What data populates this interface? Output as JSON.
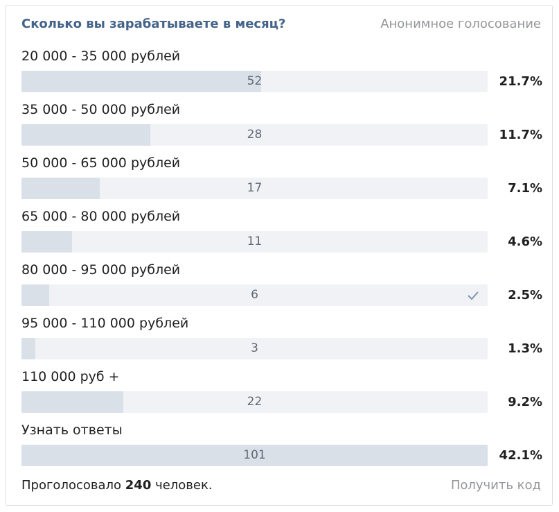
{
  "poll": {
    "title": "Сколько вы зарабатываете в месяц?",
    "kind": "Анонимное голосование",
    "footer_prefix": "Проголосовало",
    "footer_total": "240",
    "footer_suffix": "человек.",
    "get_code_label": "Получить код",
    "colors": {
      "title": "#43638a",
      "bar_track": "#f0f2f5",
      "bar_fill": "#dae0e8",
      "check": "#7d94ad"
    },
    "options": [
      {
        "label": "20 000 - 35 000 рублей",
        "count": "52",
        "percent": "21.7%",
        "share": 0.514,
        "selected": false
      },
      {
        "label": "35 000 - 50 000 рублей",
        "count": "28",
        "percent": "11.7%",
        "share": 0.277,
        "selected": false
      },
      {
        "label": "50 000 - 65 000 рублей",
        "count": "17",
        "percent": "7.1%",
        "share": 0.168,
        "selected": false
      },
      {
        "label": "65 000 - 80 000 рублей",
        "count": "11",
        "percent": "4.6%",
        "share": 0.109,
        "selected": false
      },
      {
        "label": "80 000 - 95 000 рублей",
        "count": "6",
        "percent": "2.5%",
        "share": 0.059,
        "selected": true,
        "icon": "checkmark-icon"
      },
      {
        "label": "95 000 - 110 000 рублей",
        "count": "3",
        "percent": "1.3%",
        "share": 0.03,
        "selected": false
      },
      {
        "label": "110 000 руб +",
        "count": "22",
        "percent": "9.2%",
        "share": 0.218,
        "selected": false
      },
      {
        "label": "Узнать ответы",
        "count": "101",
        "percent": "42.1%",
        "share": 1.0,
        "selected": false
      }
    ]
  }
}
